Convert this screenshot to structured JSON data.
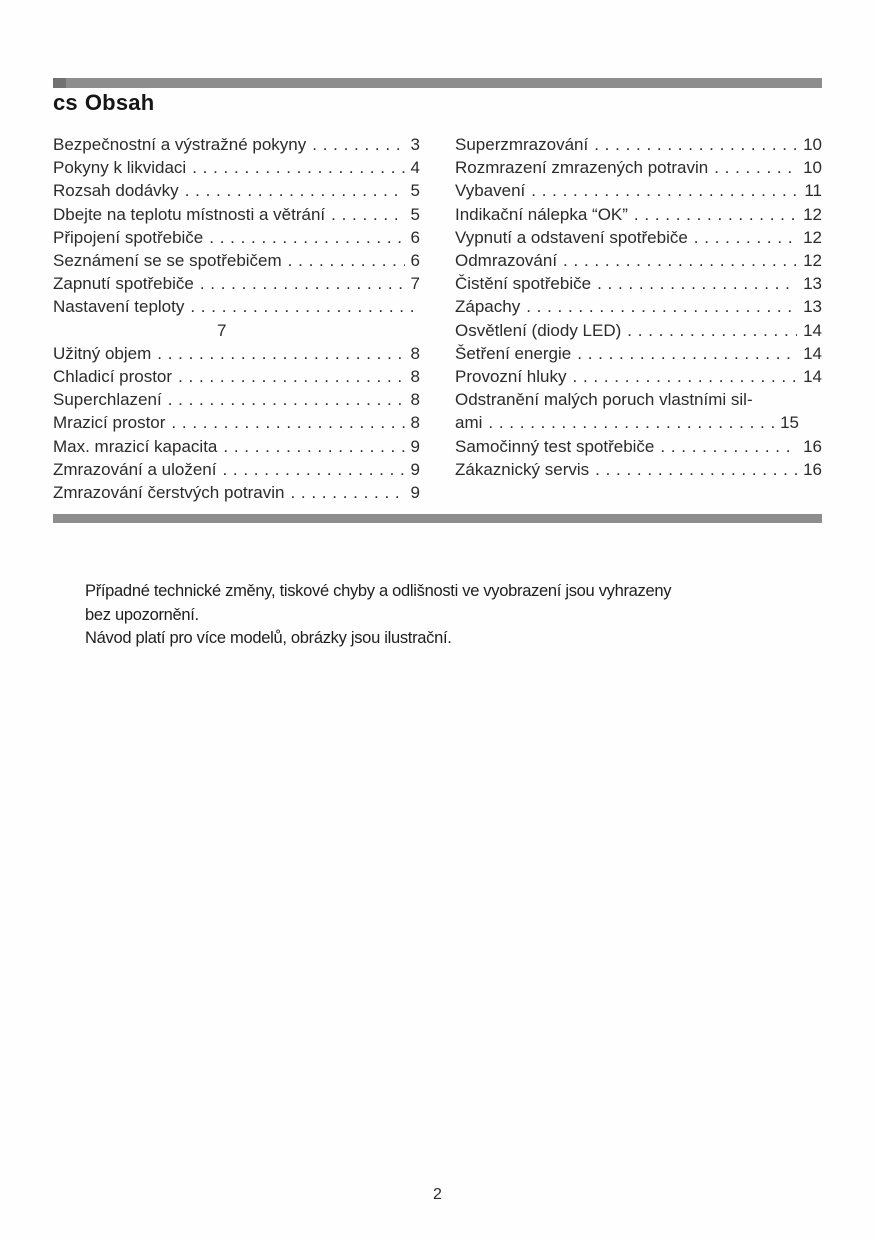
{
  "header": {
    "lang_code": "cs",
    "title": "Obsah"
  },
  "colors": {
    "divider_gray": "#8d8d8d",
    "divider_cap_gray": "#717171"
  },
  "toc": {
    "left": [
      {
        "label": "Bezpečnostní a výstražné pokyny",
        "dots": true,
        "page": "3"
      },
      {
        "label": "Pokyny k likvidaci",
        "dots": true,
        "page": "4"
      },
      {
        "label": "Rozsah dodávky",
        "dots": true,
        "page": "5"
      },
      {
        "label": "Dbejte na teplotu místnosti a větrání",
        "dots": true,
        "page": "5"
      },
      {
        "label": "Připojení spotřebiče",
        "dots": true,
        "page": "6"
      },
      {
        "label": "Seznámení se se spotřebičem",
        "dots": true,
        "page": "6"
      },
      {
        "label": "Zapnutí spotřebiče",
        "dots": true,
        "page": "7"
      },
      {
        "label": "Nastavení teploty",
        "dots": true,
        "page": ""
      },
      {
        "label": "7",
        "dots": false,
        "page": "",
        "indent": true
      },
      {
        "label": "Užitný objem",
        "dots": true,
        "page": "8"
      },
      {
        "label": "Chladicí prostor",
        "dots": true,
        "page": "8"
      },
      {
        "label": "Superchlazení",
        "dots": true,
        "page": "8"
      },
      {
        "label": "Mrazicí prostor",
        "dots": true,
        "page": "8"
      },
      {
        "label": "Max. mrazicí kapacita",
        "dots": true,
        "page": "9"
      },
      {
        "label": "Zmrazování a uložení",
        "dots": true,
        "page": "9"
      },
      {
        "label": "Zmrazování čerstvých potravin",
        "dots": true,
        "page": "9"
      }
    ],
    "right": [
      {
        "label": "Superzmrazování",
        "dots": true,
        "page": "10"
      },
      {
        "label": "Rozmrazení zmrazených potravin",
        "dots": true,
        "page": "10"
      },
      {
        "label": "Vybavení",
        "dots": true,
        "page": "11"
      },
      {
        "label": "Indikační nálepka “OK”",
        "dots": true,
        "page": "12"
      },
      {
        "label": "Vypnutí a odstavení spotřebiče",
        "dots": true,
        "page": "12"
      },
      {
        "label": "Odmrazování",
        "dots": true,
        "page": "12"
      },
      {
        "label": "Čistění spotřebiče",
        "dots": true,
        "page": "13"
      },
      {
        "label": "Zápachy",
        "dots": true,
        "page": "13"
      },
      {
        "label": "Osvětlení (diody LED)",
        "dots": true,
        "page": "14"
      },
      {
        "label": "Šetření energie",
        "dots": true,
        "page": "14"
      },
      {
        "label": "Provozní hluky",
        "dots": true,
        "page": "14"
      },
      {
        "label": "Odstranění malých poruch vlastními sil-",
        "dots": false,
        "page": ""
      },
      {
        "label": "ami",
        "dots": true,
        "page": "15",
        "page_offset": true
      },
      {
        "label": "Samočinný test spotřebiče",
        "dots": true,
        "page": "16"
      },
      {
        "label": "Zákaznický servis",
        "dots": true,
        "page": "16"
      }
    ]
  },
  "note": {
    "lines": [
      "Případné technické změny, tiskové chyby a odlišnosti ve vyobrazení jsou vyhrazeny",
      "bez upozornění.",
      "Návod platí pro více modelů, obrázky jsou ilustrační."
    ]
  },
  "footer": {
    "page_number": "2"
  }
}
